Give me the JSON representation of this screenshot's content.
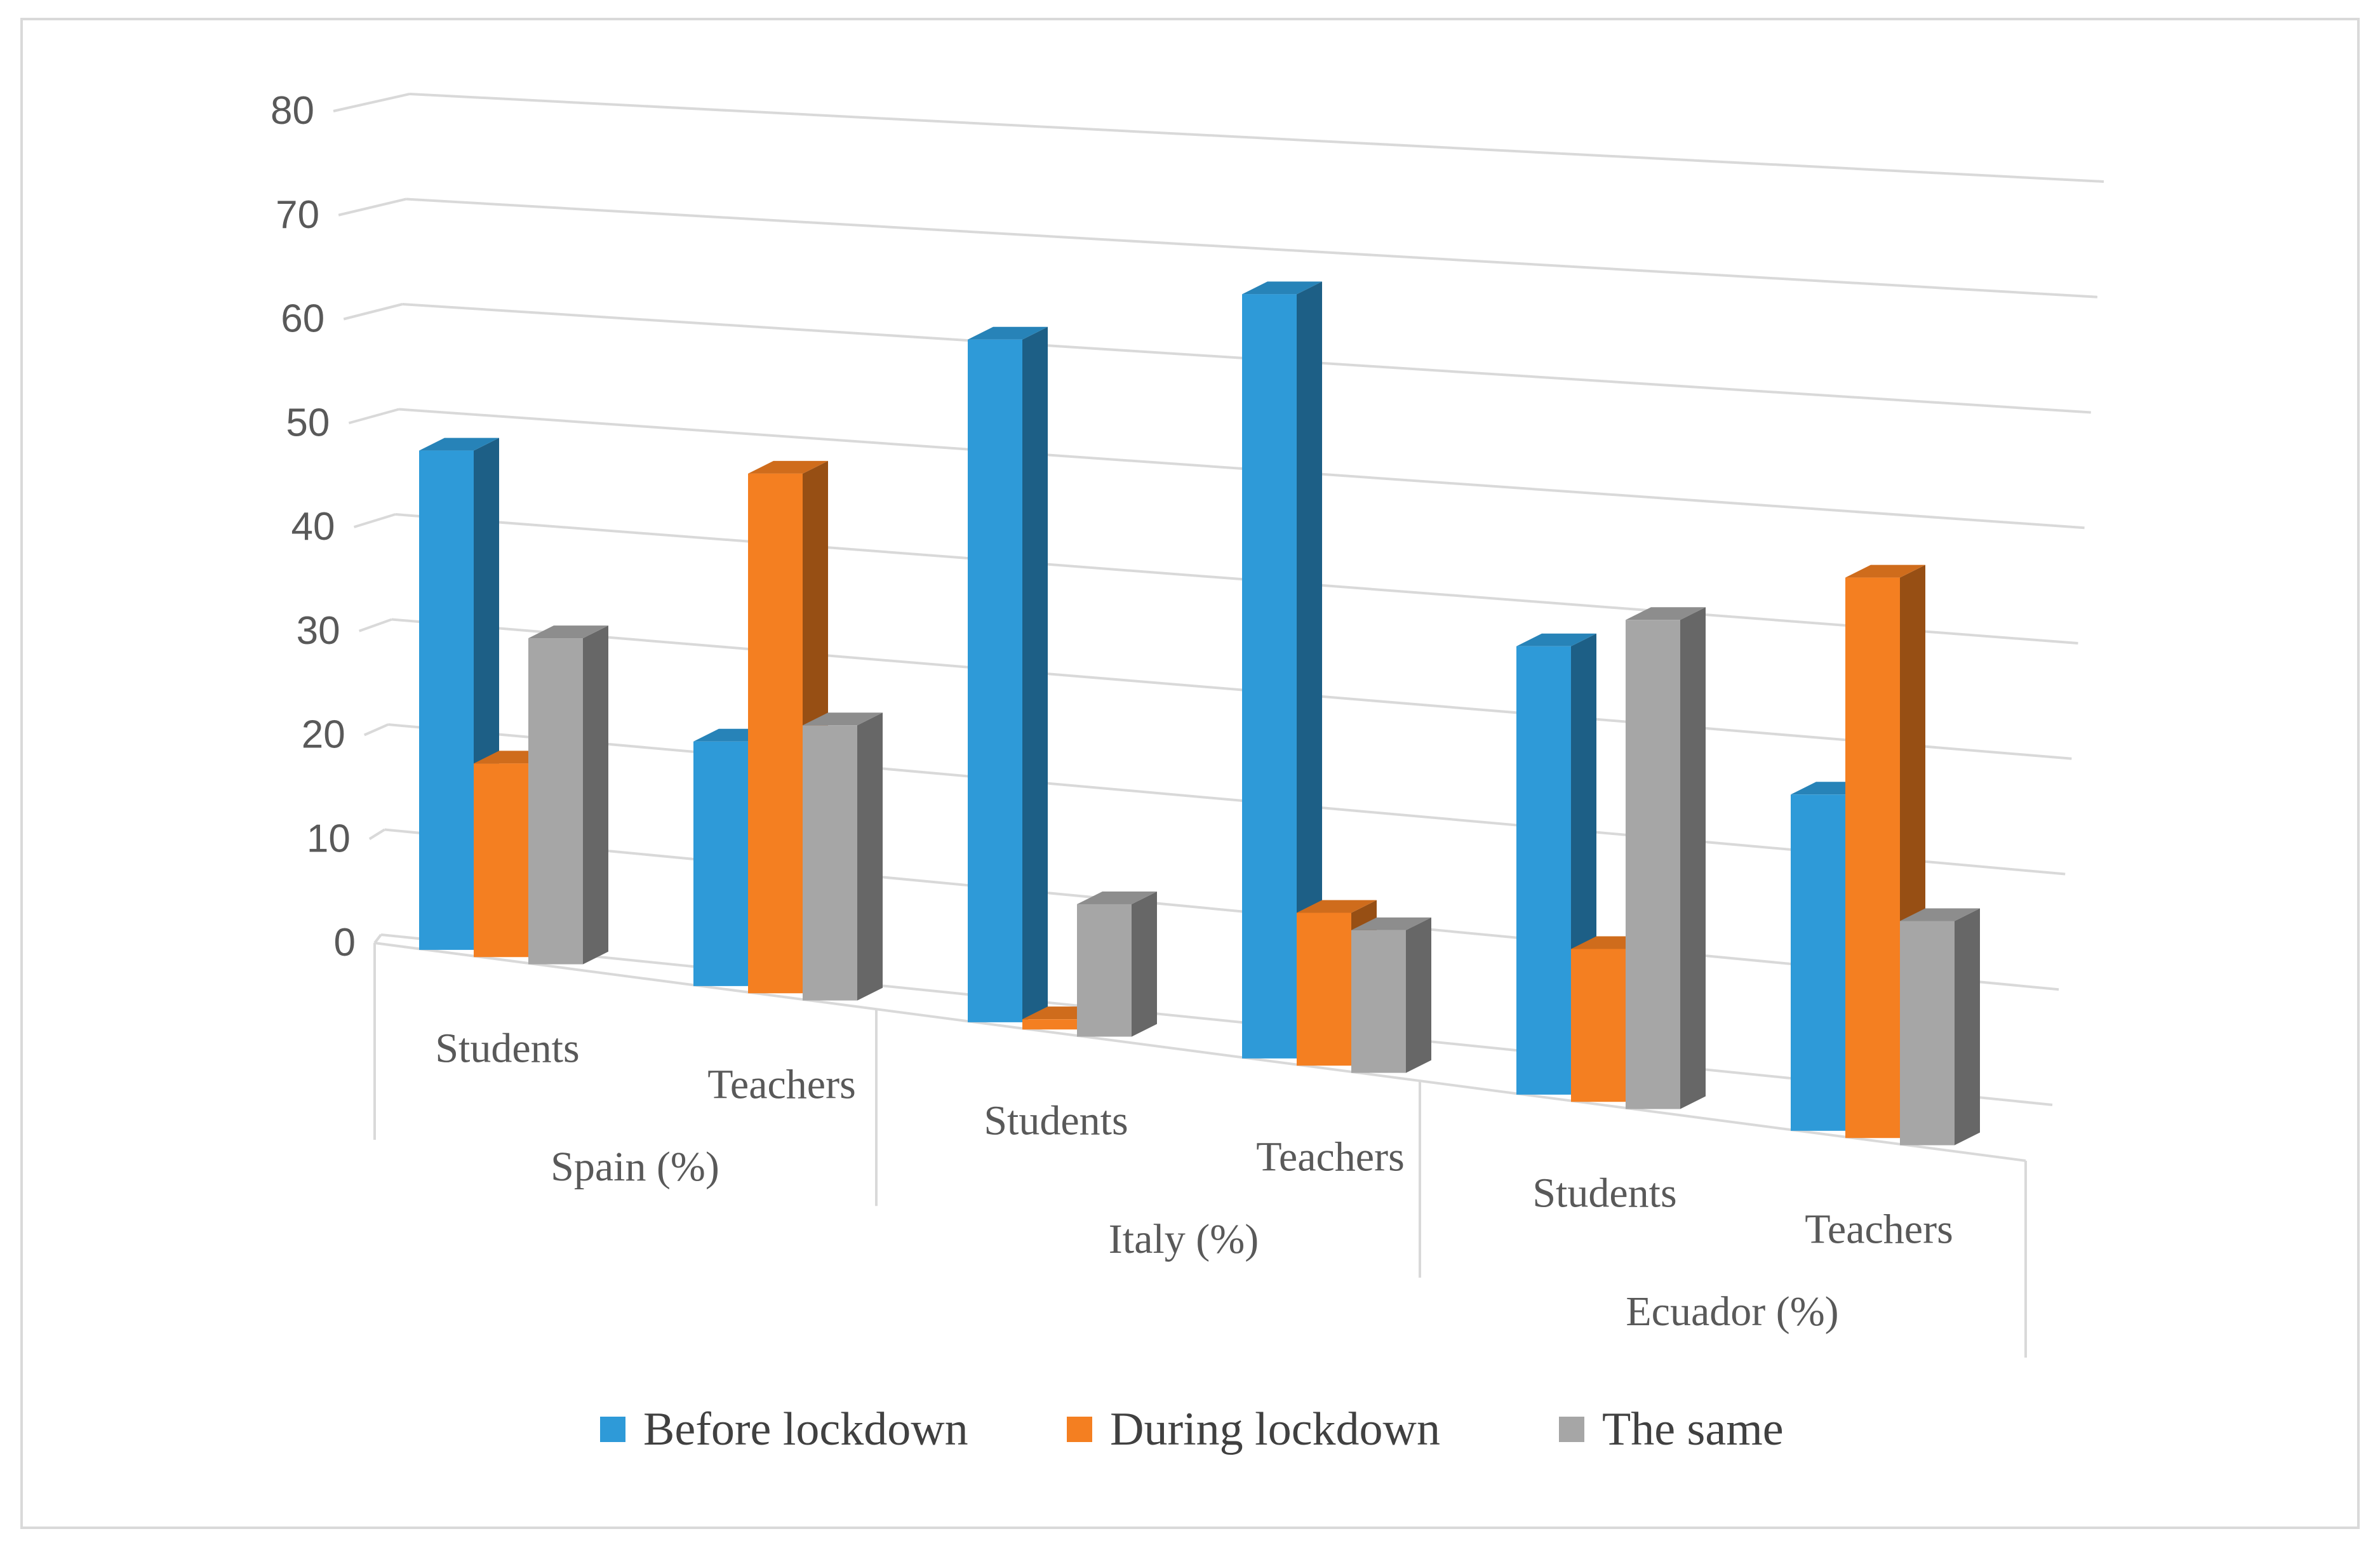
{
  "chart_data": {
    "type": "bar",
    "style": "3d-clustered-column",
    "title": "",
    "xlabel": "",
    "ylabel": "",
    "ylim": [
      0,
      80
    ],
    "yticks": [
      0,
      10,
      20,
      30,
      40,
      50,
      60,
      70,
      80
    ],
    "grid": true,
    "legend_position": "bottom",
    "groups": [
      {
        "label": "Spain (%)",
        "categories": [
          "Students",
          "Teachers"
        ]
      },
      {
        "label": "Italy (%)",
        "categories": [
          "Students",
          "Teachers"
        ]
      },
      {
        "label": "Ecuador (%)",
        "categories": [
          "Students",
          "Teachers"
        ]
      }
    ],
    "categories": [
      "Students",
      "Teachers",
      "Students",
      "Teachers",
      "Students",
      "Teachers"
    ],
    "series": [
      {
        "name": "Before lockdown",
        "color": "#2E9AD8",
        "values": [
          49,
          24,
          67,
          75,
          44,
          33
        ]
      },
      {
        "name": "During lockdown",
        "color": "#F47F21",
        "values": [
          19,
          51,
          1,
          15,
          15,
          55
        ]
      },
      {
        "name": "The same",
        "color": "#A6A6A6",
        "values": [
          32,
          27,
          13,
          14,
          48,
          22
        ]
      }
    ]
  }
}
